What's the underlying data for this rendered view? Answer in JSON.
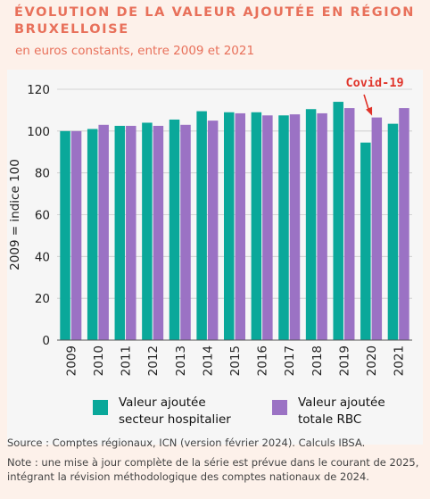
{
  "header": {
    "title": "Évolution de la valeur ajoutée en Région Bruxelloise",
    "subtitle": "en euros constants, entre 2009 et 2021"
  },
  "chart_data": {
    "type": "bar",
    "categories": [
      "2009",
      "2010",
      "2011",
      "2012",
      "2013",
      "2014",
      "2015",
      "2016",
      "2017",
      "2018",
      "2019",
      "2020",
      "2021"
    ],
    "series": [
      {
        "name": "Valeur ajoutée secteur hospitalier",
        "color": "#0aa89a",
        "values": [
          100,
          101,
          102.5,
          104,
          105.5,
          109.5,
          109,
          109,
          107.5,
          110.5,
          114,
          94.5,
          103.5
        ]
      },
      {
        "name": "Valeur ajoutée totale RBC",
        "color": "#9b72c4",
        "values": [
          100,
          103,
          102.5,
          102.5,
          103,
          105,
          108.5,
          107.5,
          108,
          108.5,
          111,
          106.5,
          111
        ]
      }
    ],
    "ylabel": "2009 = indice 100",
    "yticks": [
      0,
      20,
      40,
      60,
      80,
      100,
      120
    ],
    "ylim": [
      0,
      120
    ],
    "grid": true,
    "legend_position": "bottom",
    "annotation": {
      "text": "Covid-19",
      "category": "2020",
      "color": "#e0342a"
    }
  },
  "legend": [
    {
      "label": "Valeur ajoutée\nsecteur hospitalier",
      "color": "#0aa89a"
    },
    {
      "label": "Valeur ajoutée\ntotale RBC",
      "color": "#9b72c4"
    }
  ],
  "footer": {
    "source": "Source : Comptes régionaux, ICN (version février 2024). Calculs IBSA.",
    "note": "Note : une mise à jour complète de la série est prévue dans le courant de 2025, intégrant la révision méthodologique des comptes nationaux de 2024."
  }
}
